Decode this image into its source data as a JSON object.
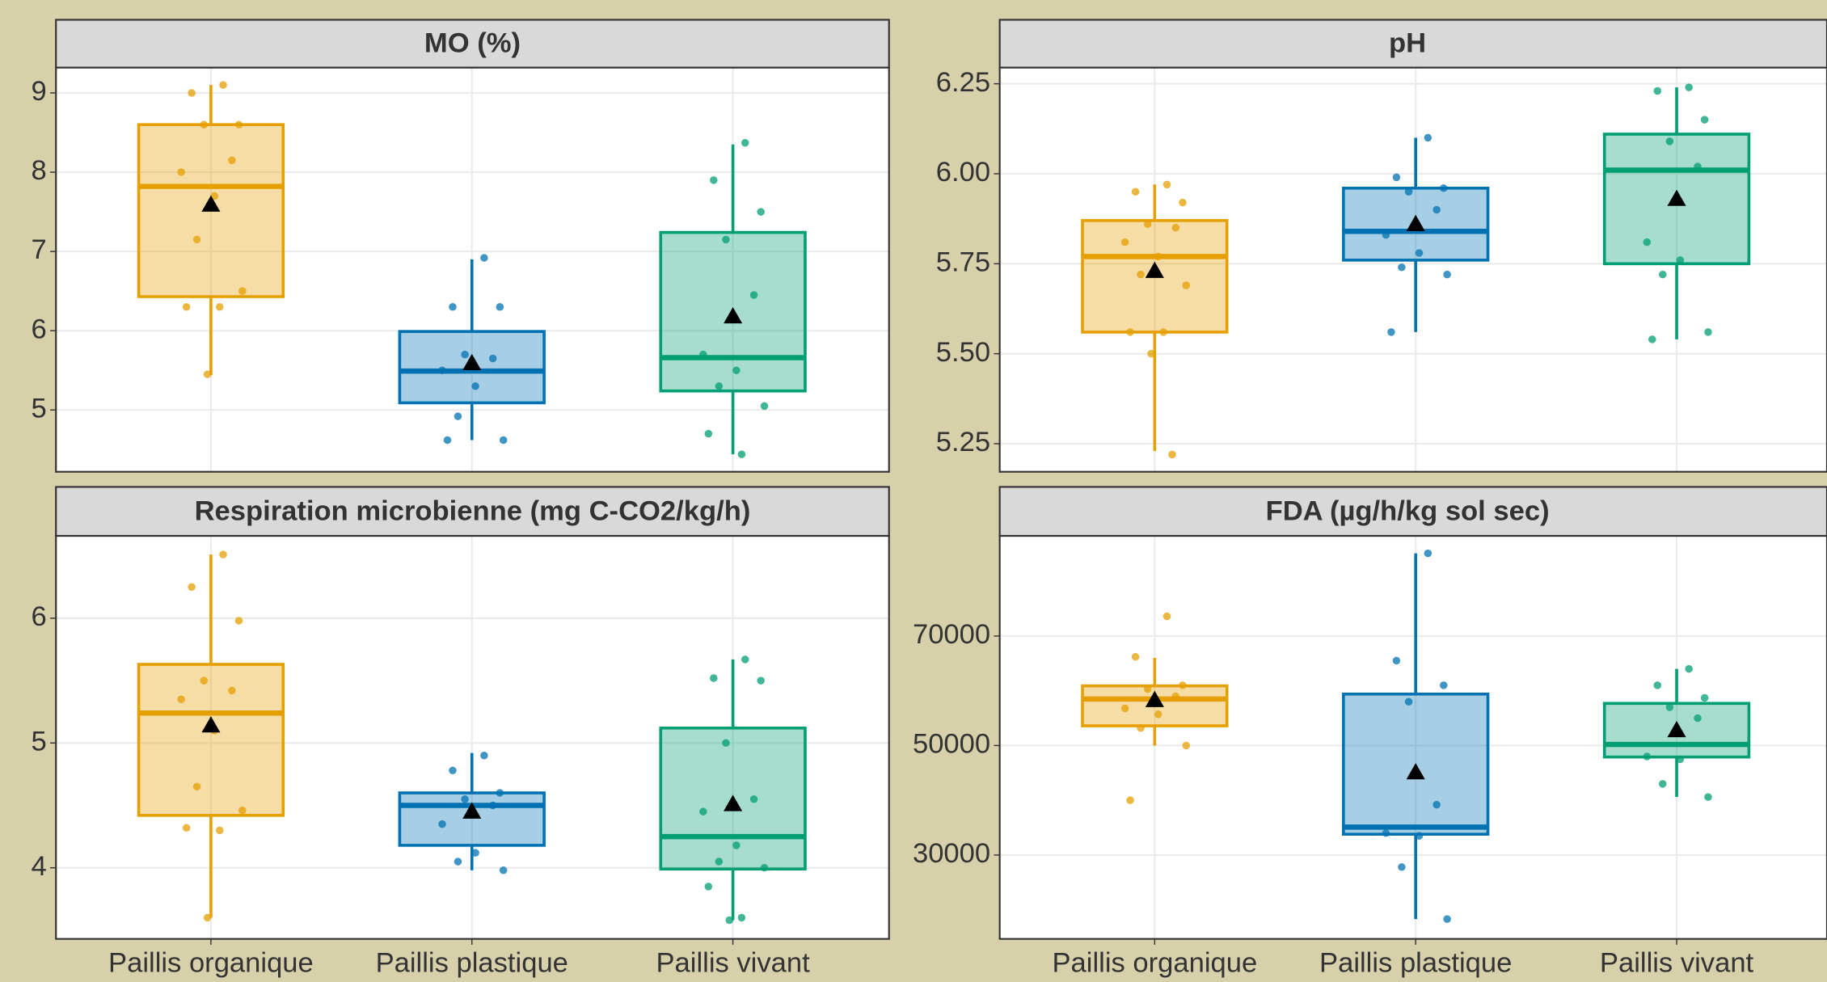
{
  "chart_data": [
    {
      "type": "box",
      "title": "MO (%)",
      "categories": [
        "Paillis organique",
        "Paillis plastique",
        "Paillis vivant"
      ],
      "colors": [
        "#E69F00",
        "#0072B2",
        "#009E73"
      ],
      "boxes": [
        {
          "min": 5.44,
          "q1": 6.43,
          "median": 7.82,
          "q3": 8.6,
          "max": 9.1,
          "mean": 7.59,
          "points": [
            9.1,
            9.0,
            8.6,
            8.6,
            8.15,
            8.0,
            7.7,
            7.15,
            6.5,
            6.3,
            6.3,
            5.45
          ]
        },
        {
          "min": 4.62,
          "q1": 5.09,
          "median": 5.49,
          "q3": 5.99,
          "max": 6.9,
          "mean": 5.59,
          "points": [
            6.92,
            6.3,
            6.3,
            5.7,
            5.65,
            5.5,
            5.3,
            4.92,
            4.62,
            4.62
          ]
        },
        {
          "min": 4.44,
          "q1": 5.24,
          "median": 5.66,
          "q3": 7.24,
          "max": 8.35,
          "mean": 6.18,
          "points": [
            8.37,
            7.9,
            7.5,
            7.15,
            6.45,
            5.7,
            5.5,
            5.3,
            5.05,
            4.7,
            4.44
          ]
        }
      ],
      "ylim": [
        4.22,
        9.32
      ],
      "yticks": [
        5,
        6,
        7,
        8,
        9
      ]
    },
    {
      "type": "box",
      "title": "pH",
      "categories": [
        "Paillis organique",
        "Paillis plastique",
        "Paillis vivant"
      ],
      "colors": [
        "#E69F00",
        "#0072B2",
        "#009E73"
      ],
      "boxes": [
        {
          "min": 5.23,
          "q1": 5.56,
          "median": 5.77,
          "q3": 5.87,
          "max": 5.97,
          "mean": 5.73,
          "points": [
            5.97,
            5.95,
            5.92,
            5.86,
            5.85,
            5.81,
            5.77,
            5.72,
            5.69,
            5.56,
            5.56,
            5.5,
            5.22
          ]
        },
        {
          "min": 5.56,
          "q1": 5.76,
          "median": 5.84,
          "q3": 5.96,
          "max": 6.1,
          "mean": 5.86,
          "points": [
            6.1,
            5.99,
            5.96,
            5.95,
            5.9,
            5.83,
            5.78,
            5.74,
            5.72,
            5.56
          ]
        },
        {
          "min": 5.54,
          "q1": 5.75,
          "median": 6.01,
          "q3": 6.11,
          "max": 6.24,
          "mean": 5.93,
          "points": [
            6.24,
            6.23,
            6.15,
            6.09,
            6.02,
            5.81,
            5.76,
            5.72,
            5.56,
            5.54
          ]
        }
      ],
      "ylim": [
        5.172,
        6.295
      ],
      "yticks": [
        5.25,
        {
          "value": 5.5,
          "label": "5.50"
        },
        5.75,
        {
          "value": 6,
          "label": "6.00"
        },
        6.25
      ]
    },
    {
      "type": "box",
      "title": "Respiration microbienne (mg C-CO2/kg/h)",
      "categories": [
        "Paillis organique",
        "Paillis plastique",
        "Paillis vivant"
      ],
      "colors": [
        "#E69F00",
        "#0072B2",
        "#009E73"
      ],
      "boxes": [
        {
          "min": 3.6,
          "q1": 4.42,
          "median": 5.24,
          "q3": 5.63,
          "max": 6.51,
          "mean": 5.14,
          "points": [
            6.51,
            6.25,
            5.98,
            5.5,
            5.42,
            5.35,
            5.1,
            4.65,
            4.46,
            4.32,
            4.3,
            3.6
          ]
        },
        {
          "min": 3.98,
          "q1": 4.18,
          "median": 4.5,
          "q3": 4.6,
          "max": 4.92,
          "mean": 4.45,
          "points": [
            4.9,
            4.78,
            4.6,
            4.55,
            4.5,
            4.35,
            4.12,
            4.05,
            3.98
          ]
        },
        {
          "min": 3.58,
          "q1": 3.99,
          "median": 4.25,
          "q3": 5.12,
          "max": 5.67,
          "mean": 4.51,
          "points": [
            5.67,
            5.52,
            5.5,
            5.0,
            4.55,
            4.45,
            4.18,
            4.05,
            4.0,
            3.85,
            3.6,
            3.58
          ]
        }
      ],
      "ylim": [
        3.43,
        6.66
      ],
      "yticks": [
        4,
        5,
        6
      ]
    },
    {
      "type": "box",
      "title": "FDA (µg/h/kg sol sec)",
      "categories": [
        "Paillis organique",
        "Paillis plastique",
        "Paillis vivant"
      ],
      "colors": [
        "#E69F00",
        "#0072B2",
        "#009E73"
      ],
      "boxes": [
        {
          "min": 50000,
          "q1": 53600,
          "median": 58500,
          "q3": 60900,
          "max": 66000,
          "mean": 58300,
          "points": [
            73600,
            66200,
            61000,
            60300,
            59000,
            56800,
            55700,
            53200,
            50000,
            40000
          ]
        },
        {
          "min": 18300,
          "q1": 33800,
          "median": 35100,
          "q3": 59400,
          "max": 85100,
          "mean": 45100,
          "points": [
            85100,
            65500,
            61000,
            58000,
            39200,
            34000,
            33500,
            27800,
            18300
          ]
        },
        {
          "min": 40600,
          "q1": 47900,
          "median": 50200,
          "q3": 57700,
          "max": 64000,
          "mean": 52800,
          "points": [
            64000,
            61000,
            58700,
            57000,
            55000,
            48000,
            47500,
            43000,
            40600
          ]
        }
      ],
      "ylim": [
        14680,
        88300
      ],
      "yticks": [
        30000,
        50000,
        70000
      ]
    }
  ]
}
